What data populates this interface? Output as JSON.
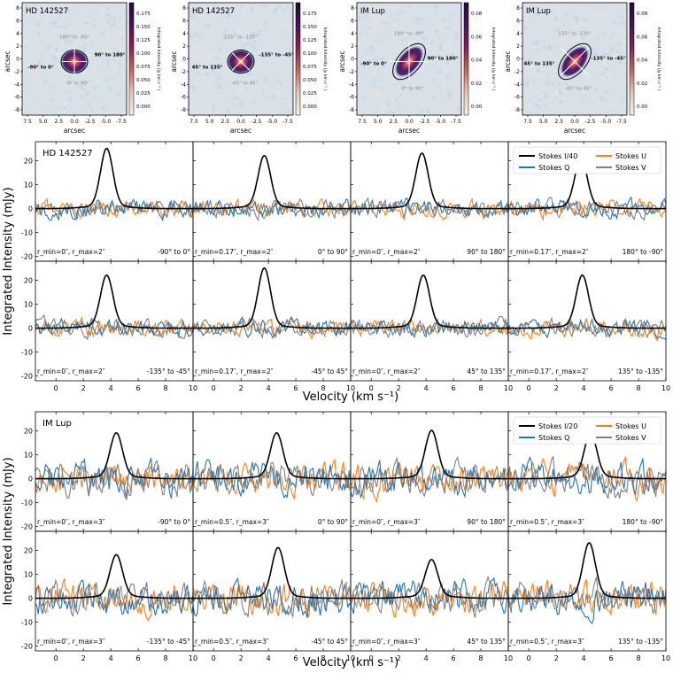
{
  "colors": {
    "stokes_i": "#000000",
    "stokes_q": "#1f77b4",
    "stokes_u": "#ff7f0e",
    "stokes_v": "#808080",
    "map_bg": "#d9e1e8",
    "colormap": [
      "#f2f0ee",
      "#e8c6b7",
      "#c9655c",
      "#8f1f4e",
      "#4a1260",
      "#1c0e3a"
    ]
  },
  "maps": {
    "panels": [
      {
        "name": "HD 142527",
        "wedges": [
          "180° to -90°",
          "90° to 180°",
          "-90° to 0°",
          "0° to 90°"
        ],
        "cbar_ticks": [
          "0.175",
          "0.150",
          "0.125",
          "0.100",
          "0.075",
          "0.050",
          "0.025",
          "0.000"
        ],
        "cbar_label": "Integrated Intensity (Jy km s⁻¹ )"
      },
      {
        "name": "HD 142527",
        "wedges": [
          "135° to -135°",
          "-135° to -45°",
          "45° to 135°",
          "-45° to 45°"
        ],
        "cbar_ticks": [
          "0.175",
          "0.150",
          "0.125",
          "0.100",
          "0.075",
          "0.050",
          "0.025",
          "0.000"
        ],
        "cbar_label": "Integrated Intensity (Jy km s⁻¹ )"
      },
      {
        "name": "IM Lup",
        "wedges": [
          "180° to -90°",
          "90° to 180°",
          "-90° to 0°",
          "0° to 90°"
        ],
        "cbar_ticks": [
          "0.08",
          "0.06",
          "0.04",
          "0.02",
          "0.00"
        ],
        "cbar_label": "Integrated Intensity (Jy km s⁻¹ )"
      },
      {
        "name": "IM Lup",
        "wedges": [
          "135° to -135°",
          "-135° to -45°",
          "45° to 135°",
          "-45° to 45°"
        ],
        "cbar_ticks": [
          "0.08",
          "0.06",
          "0.04",
          "0.02",
          "0.00"
        ],
        "cbar_label": "Integrated Intensity (Jy km s⁻¹ )"
      }
    ],
    "xticks": [
      "7.5",
      "5.0",
      "2.5",
      "0.0",
      "-2.5",
      "-5.0",
      "-7.5"
    ],
    "yticks": [
      "8",
      "6",
      "4",
      "2",
      "0",
      "-2",
      "-4",
      "-6",
      "-8"
    ],
    "xlabel": "arcsec",
    "ylabel": "arcsec"
  },
  "chart_data": [
    {
      "type": "line",
      "title": "HD 142527",
      "xlabel": "Velocity (km s⁻¹)",
      "ylabel": "Integrated Intensity (mJy)",
      "xlim": [
        -1.5,
        10
      ],
      "ylim": [
        -22,
        28
      ],
      "xticks": [
        "0",
        "2",
        "4",
        "6",
        "8",
        "10"
      ],
      "yticks": [
        "20",
        "10",
        "0",
        "-10",
        "-20"
      ],
      "legend": [
        "Stokes I/40",
        "Stokes Q",
        "Stokes U",
        "Stokes V"
      ],
      "noise_amplitude": 3.5,
      "panels": [
        {
          "radius": "r_min=0″, r_max=2″",
          "wedge": "-90° to 0°",
          "peak_velocity": 3.7,
          "peak": 24
        },
        {
          "radius": "r_min=0.17″, r_max=2″",
          "wedge": "0° to 90°",
          "peak_velocity": 3.7,
          "peak": 21
        },
        {
          "radius": "r_min=0″, r_max=2″",
          "wedge": "90° to 180°",
          "peak_velocity": 3.7,
          "peak": 22
        },
        {
          "radius": "r_min=0.17″, r_max=2″",
          "wedge": "180° to -90°",
          "peak_velocity": 3.8,
          "peak": 20
        },
        {
          "radius": "r_min=0″, r_max=2″",
          "wedge": "-135° to -45°",
          "peak_velocity": 3.7,
          "peak": 21
        },
        {
          "radius": "r_min=0.17″, r_max=2″",
          "wedge": "-45° to 45°",
          "peak_velocity": 3.7,
          "peak": 24
        },
        {
          "radius": "r_min=0″, r_max=2″",
          "wedge": "45° to 135°",
          "peak_velocity": 3.8,
          "peak": 21
        },
        {
          "radius": "r_min=0.17″, r_max=2″",
          "wedge": "135° to -135°",
          "peak_velocity": 3.9,
          "peak": 21
        }
      ]
    },
    {
      "type": "line",
      "title": "IM Lup",
      "xlabel": "Velocity (km s⁻¹)",
      "ylabel": "Integrated Intensity (mJy)",
      "xlim": [
        -1.5,
        10
      ],
      "ylim": [
        -22,
        28
      ],
      "xticks": [
        "0",
        "2",
        "4",
        "6",
        "8",
        "10"
      ],
      "yticks": [
        "20",
        "10",
        "0",
        "-10",
        "-20"
      ],
      "legend": [
        "Stokes I/20",
        "Stokes Q",
        "Stokes U",
        "Stokes V"
      ],
      "noise_amplitude": 6.5,
      "panels": [
        {
          "radius": "r_min=0″, r_max=3″",
          "wedge": "-90° to 0°",
          "peak_velocity": 4.4,
          "peak": 18
        },
        {
          "radius": "r_min=0.5″, r_max=3″",
          "wedge": "0° to 90°",
          "peak_velocity": 4.6,
          "peak": 18
        },
        {
          "radius": "r_min=0″, r_max=3″",
          "wedge": "90° to 180°",
          "peak_velocity": 4.4,
          "peak": 19
        },
        {
          "radius": "r_min=0.5″, r_max=3″",
          "wedge": "180° to -90°",
          "peak_velocity": 4.5,
          "peak": 18
        },
        {
          "radius": "r_min=0″, r_max=3″",
          "wedge": "-135° to -45°",
          "peak_velocity": 4.4,
          "peak": 17
        },
        {
          "radius": "r_min=0.5″, r_max=3″",
          "wedge": "-45° to 45°",
          "peak_velocity": 4.7,
          "peak": 20
        },
        {
          "radius": "r_min=0″, r_max=3″",
          "wedge": "45° to 135°",
          "peak_velocity": 4.4,
          "peak": 15
        },
        {
          "radius": "r_min=0.5″, r_max=3″",
          "wedge": "135° to -135°",
          "peak_velocity": 4.4,
          "peak": 22
        }
      ]
    }
  ]
}
